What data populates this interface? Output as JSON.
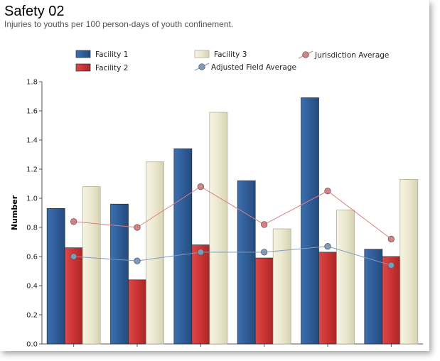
{
  "chart_data": {
    "type": "bar",
    "title": "Safety 02",
    "subtitle": "Injuries to youths per 100 person-days of youth confinement.",
    "xlabel": "",
    "ylabel": "Number",
    "ylim": [
      0,
      1.8
    ],
    "yticks": [
      "0.0",
      "0.2",
      "0.4",
      "0.6",
      "0.8",
      "1.0",
      "1.2",
      "1.4",
      "1.6",
      "1.8"
    ],
    "categories": [
      "",
      "",
      "",
      "",
      "",
      ""
    ],
    "series": [
      {
        "name": "Facility 1",
        "kind": "bar",
        "color": "#2f5d98",
        "values": [
          0.93,
          0.96,
          1.34,
          1.12,
          1.69,
          0.65
        ]
      },
      {
        "name": "Facility 2",
        "kind": "bar",
        "color": "#cc3333",
        "values": [
          0.66,
          0.44,
          0.68,
          0.59,
          0.63,
          0.6
        ]
      },
      {
        "name": "Facility 3",
        "kind": "bar",
        "color": "#ebe8cf",
        "values": [
          1.08,
          1.25,
          1.59,
          0.79,
          0.92,
          1.13
        ]
      },
      {
        "name": "Jurisdiction Average",
        "kind": "line",
        "color": "#d98080",
        "values": [
          0.84,
          0.8,
          1.08,
          0.82,
          1.05,
          0.72
        ]
      },
      {
        "name": "Adjusted Field Average",
        "kind": "line",
        "color": "#7f9bbb",
        "values": [
          0.6,
          0.57,
          0.63,
          0.63,
          0.67,
          0.54
        ]
      }
    ],
    "legend_position": "top",
    "grid": false
  }
}
